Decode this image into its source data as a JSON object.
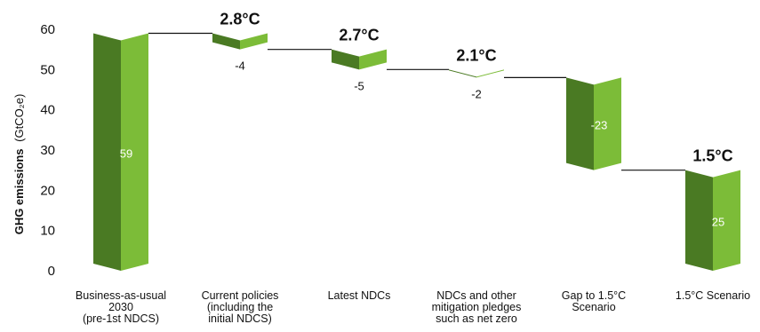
{
  "chart_data": {
    "type": "bar",
    "subtype": "waterfall",
    "ylabel": "GHG emissions",
    "ylabel_unit": "(GtCO₂e)",
    "ylim": [
      0,
      60
    ],
    "yticks": [
      "0",
      "10",
      "20",
      "30",
      "40",
      "50",
      "60"
    ],
    "grid": false,
    "categories": [
      [
        "Business-as-usual",
        "2030",
        "(pre-1st NDCS)"
      ],
      [
        "Current policies",
        "(including the",
        "initial NDCS)"
      ],
      [
        "Latest NDCs"
      ],
      [
        "NDCs and other",
        "mitigation pledges",
        "such as net zero"
      ],
      [
        "Gap to 1.5°C",
        "Scenario"
      ],
      [
        "1.5°C Scenario"
      ]
    ],
    "bars": [
      {
        "base": 0,
        "top": 59,
        "label": "59",
        "temperature": ""
      },
      {
        "base": 55,
        "top": 59,
        "label": "-4",
        "temperature": "2.8°C"
      },
      {
        "base": 50,
        "top": 55,
        "label": "-5",
        "temperature": "2.7°C"
      },
      {
        "base": 48,
        "top": 50,
        "label": "-2",
        "temperature": "2.1°C"
      },
      {
        "base": 25,
        "top": 48,
        "label": "-23",
        "temperature": ""
      },
      {
        "base": 0,
        "top": 25,
        "label": "25",
        "temperature": "1.5°C"
      }
    ],
    "colors": {
      "dark": "#4a7a23",
      "light": "#7cbc38",
      "connector": "#111111"
    }
  }
}
